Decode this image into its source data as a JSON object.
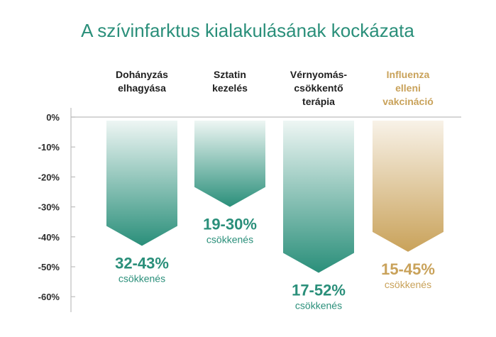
{
  "chart_data": {
    "type": "bar",
    "title": "A szívinfarktus kialakulásának kockázata",
    "categories": [
      [
        "Dohányzás",
        "elhagyása"
      ],
      [
        "Sztatin",
        "kezelés"
      ],
      [
        "Vérnyomás-",
        "csökkentő",
        "terápia"
      ],
      [
        "Influenza",
        "elleni",
        "vakcináció"
      ]
    ],
    "ranges": [
      [
        32,
        43
      ],
      [
        19,
        30
      ],
      [
        17,
        52
      ],
      [
        15,
        45
      ]
    ],
    "value_labels": [
      "32-43%",
      "19-30%",
      "17-52%",
      "15-45%"
    ],
    "sub_label": "csökkenés",
    "y_ticks": [
      "0%",
      "-10%",
      "-20%",
      "-30%",
      "-40%",
      "-50%",
      "-60%"
    ],
    "ylim": [
      -60,
      0
    ],
    "colors": {
      "teal": "#2a8f7a",
      "teal_light": "#e9f3f1",
      "gold": "#c9a25a",
      "gold_light": "#f6efe3"
    },
    "highlight_index": 3
  }
}
